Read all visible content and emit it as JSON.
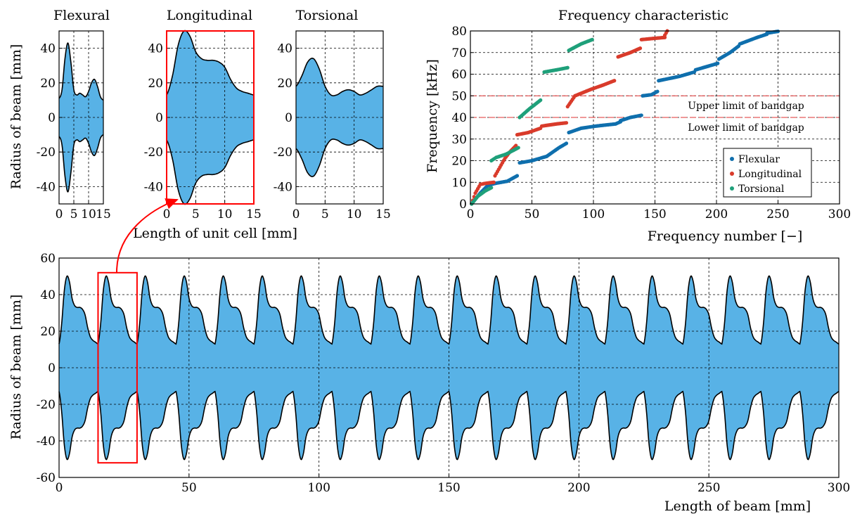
{
  "figure": {
    "unit_cell_axis_label": "Length of unit cell [mm]",
    "unit_cell_y_label": "Radius of beam [mm]"
  },
  "chart_data": [
    {
      "id": "flexural",
      "type": "area",
      "title": "Flexural",
      "xlim": [
        0,
        15
      ],
      "ylim": [
        -50,
        50
      ],
      "xticks": [
        0,
        5,
        10,
        15
      ],
      "yticks": [
        -40,
        -20,
        0,
        20,
        40
      ],
      "grid": true,
      "x": [
        0,
        1,
        2,
        3,
        4,
        5,
        6,
        7,
        8,
        9,
        10,
        11,
        12,
        13,
        14,
        15
      ],
      "y_upper": [
        11,
        16,
        34,
        43,
        32,
        16,
        13,
        14,
        13,
        12,
        15,
        20,
        22,
        18,
        12,
        10
      ],
      "symmetric": true
    },
    {
      "id": "longitudinal",
      "type": "area",
      "title": "Longitudinal",
      "xlim": [
        0,
        15
      ],
      "ylim": [
        -50,
        50
      ],
      "xticks": [
        0,
        5,
        10,
        15
      ],
      "yticks": [
        -40,
        -20,
        0,
        20,
        40
      ],
      "grid": true,
      "highlighted": true,
      "x": [
        0,
        1,
        2,
        3,
        4,
        5,
        6,
        7,
        8,
        9,
        10,
        11,
        12,
        13,
        14,
        15
      ],
      "y_upper": [
        13,
        24,
        42,
        50,
        47,
        38,
        34,
        33,
        33,
        32,
        29,
        22,
        17,
        15,
        14,
        13
      ],
      "symmetric": true
    },
    {
      "id": "torsional",
      "type": "area",
      "title": "Torsional",
      "xlim": [
        0,
        15
      ],
      "ylim": [
        -50,
        50
      ],
      "xticks": [
        0,
        5,
        10,
        15
      ],
      "yticks": [
        -40,
        -20,
        0,
        20,
        40
      ],
      "grid": true,
      "x": [
        0,
        1,
        2,
        3,
        4,
        5,
        6,
        7,
        8,
        9,
        10,
        11,
        12,
        13,
        14,
        15
      ],
      "y_upper": [
        18,
        24,
        32,
        34,
        28,
        18,
        13,
        13,
        15,
        16,
        15,
        13,
        14,
        16,
        18,
        18
      ],
      "symmetric": true
    },
    {
      "id": "frequency",
      "type": "scatter",
      "title": "Frequency characteristic",
      "xlabel": "Frequency number [−]",
      "ylabel": "Frequency [kHz]",
      "xlim": [
        0,
        300
      ],
      "ylim": [
        0,
        80
      ],
      "xticks": [
        0,
        50,
        100,
        150,
        200,
        250,
        300
      ],
      "yticks": [
        0,
        10,
        20,
        30,
        40,
        50,
        60,
        70,
        80
      ],
      "grid": true,
      "legend": "lower-right",
      "annotations": [
        {
          "text": "Upper limit of bandgap",
          "y": 50
        },
        {
          "text": "Lower limit of bandgap",
          "y": 40
        }
      ],
      "series": [
        {
          "name": "Flexular",
          "color": "#0f6fad",
          "segments": [
            {
              "n": [
                1,
                8,
                14,
                20
              ],
              "f": [
                0,
                5,
                8.5,
                9.5
              ]
            },
            {
              "n": [
                20,
                30,
                38
              ],
              "f": [
                9.5,
                10.5,
                13
              ]
            },
            {
              "n": [
                40,
                50,
                62,
                72,
                78
              ],
              "f": [
                19,
                20,
                22,
                26,
                28
              ]
            },
            {
              "n": [
                80,
                90,
                102,
                118,
                122
              ],
              "f": [
                33,
                35,
                36,
                37,
                38
              ]
            },
            {
              "n": [
                122,
                130,
                139
              ],
              "f": [
                38.5,
                40,
                41
              ]
            },
            {
              "n": [
                140,
                147,
                152
              ],
              "f": [
                50,
                50.5,
                52
              ]
            },
            {
              "n": [
                153,
                170,
                182
              ],
              "f": [
                57,
                59,
                61
              ]
            },
            {
              "n": [
                183,
                195,
                201
              ],
              "f": [
                62,
                64,
                65
              ]
            },
            {
              "n": [
                202,
                211,
                218
              ],
              "f": [
                67,
                70,
                73
              ]
            },
            {
              "n": [
                219,
                233,
                241
              ],
              "f": [
                74,
                77,
                78.5
              ]
            },
            {
              "n": [
                241,
                250
              ],
              "f": [
                79,
                79.8
              ]
            }
          ]
        },
        {
          "name": "Longitudinal",
          "color": "#d93b2b",
          "segments": [
            {
              "n": [
                1,
                4,
                8,
                12,
                19
              ],
              "f": [
                0,
                5,
                9,
                9.5,
                10
              ]
            },
            {
              "n": [
                20,
                28,
                32,
                37
              ],
              "f": [
                13,
                21,
                24,
                27
              ]
            },
            {
              "n": [
                38,
                47,
                57
              ],
              "f": [
                32,
                33,
                35
              ]
            },
            {
              "n": [
                58,
                70,
                78
              ],
              "f": [
                36,
                37,
                37.5
              ]
            },
            {
              "n": [
                79,
                85,
                98,
                108,
                117
              ],
              "f": [
                45,
                50,
                53,
                55,
                57
              ]
            },
            {
              "n": [
                120,
                130,
                138
              ],
              "f": [
                68,
                70,
                72
              ]
            },
            {
              "n": [
                139,
                148,
                158
              ],
              "f": [
                76,
                76.5,
                77
              ]
            },
            {
              "n": [
                158,
                160
              ],
              "f": [
                78,
                80
              ]
            }
          ]
        },
        {
          "name": "Torsional",
          "color": "#1fa07a",
          "segments": [
            {
              "n": [
                1,
                6,
                12,
                17
              ],
              "f": [
                0,
                3.5,
                6,
                7.5
              ]
            },
            {
              "n": [
                17,
                21,
                29,
                39
              ],
              "f": [
                20,
                21.5,
                23,
                26
              ]
            },
            {
              "n": [
                40,
                48,
                57
              ],
              "f": [
                40,
                44,
                48
              ]
            },
            {
              "n": [
                60,
                70,
                79
              ],
              "f": [
                61,
                62,
                63
              ]
            },
            {
              "n": [
                80,
                90,
                99
              ],
              "f": [
                71,
                74,
                76
              ]
            }
          ]
        }
      ]
    },
    {
      "id": "beam",
      "type": "area",
      "xlabel": "Length of beam [mm]",
      "ylabel": "Radius of beam [mm]",
      "xlim": [
        0,
        300
      ],
      "ylim": [
        -60,
        60
      ],
      "xticks": [
        0,
        50,
        100,
        150,
        200,
        250,
        300
      ],
      "yticks": [
        -60,
        -40,
        -20,
        0,
        20,
        40,
        60
      ],
      "grid": true,
      "unit_cell_length": 15,
      "unit_cells": 20,
      "profile": "longitudinal",
      "highlight_x": [
        15,
        30
      ]
    }
  ]
}
